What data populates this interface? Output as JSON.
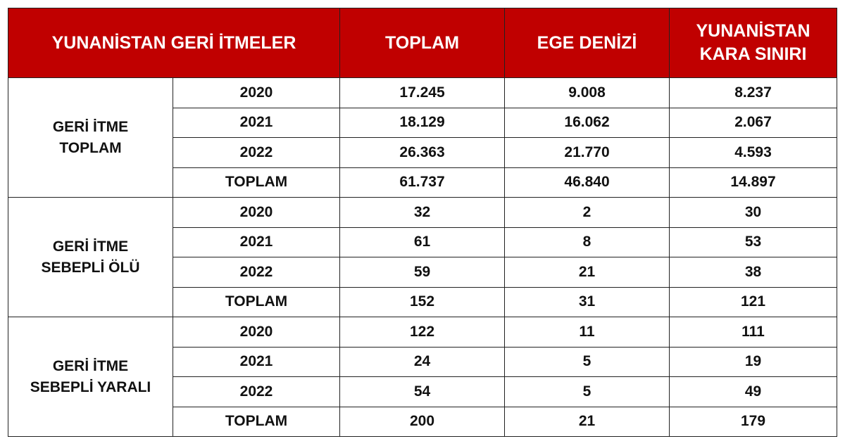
{
  "header": {
    "title": "YUNANİSTAN GERİ İTMELER",
    "columns": [
      "TOPLAM",
      "EGE DENİZİ",
      "YUNANİSTAN KARA SINIRI"
    ]
  },
  "colors": {
    "header_bg": "#c00000",
    "header_text": "#ffffff"
  },
  "groups": [
    {
      "label": "GERİ İTME TOPLAM",
      "rows": [
        {
          "year": "2020",
          "values": [
            "17.245",
            "9.008",
            "8.237"
          ]
        },
        {
          "year": "2021",
          "values": [
            "18.129",
            "16.062",
            "2.067"
          ]
        },
        {
          "year": "2022",
          "values": [
            "26.363",
            "21.770",
            "4.593"
          ]
        },
        {
          "year": "TOPLAM",
          "values": [
            "61.737",
            "46.840",
            "14.897"
          ]
        }
      ]
    },
    {
      "label": "GERİ İTME SEBEPLİ ÖLÜ",
      "rows": [
        {
          "year": "2020",
          "values": [
            "32",
            "2",
            "30"
          ]
        },
        {
          "year": "2021",
          "values": [
            "61",
            "8",
            "53"
          ]
        },
        {
          "year": "2022",
          "values": [
            "59",
            "21",
            "38"
          ]
        },
        {
          "year": "TOPLAM",
          "values": [
            "152",
            "31",
            "121"
          ]
        }
      ]
    },
    {
      "label": "GERİ İTME SEBEPLİ YARALI",
      "rows": [
        {
          "year": "2020",
          "values": [
            "122",
            "11",
            "111"
          ]
        },
        {
          "year": "2021",
          "values": [
            "24",
            "5",
            "19"
          ]
        },
        {
          "year": "2022",
          "values": [
            "54",
            "5",
            "49"
          ]
        },
        {
          "year": "TOPLAM",
          "values": [
            "200",
            "21",
            "179"
          ]
        }
      ]
    }
  ]
}
